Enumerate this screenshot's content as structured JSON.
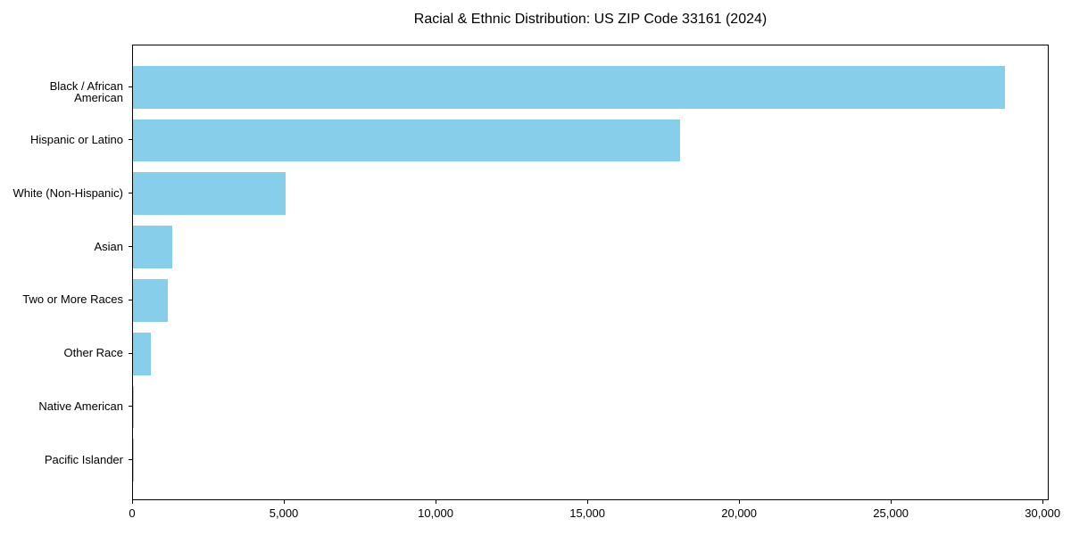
{
  "chart_data": {
    "type": "bar",
    "orientation": "horizontal",
    "title": "Racial & Ethnic Distribution: US ZIP Code 33161 (2024)",
    "categories": [
      "Black / African American",
      "Hispanic or Latino",
      "White (Non-Hispanic)",
      "Asian",
      "Two or More Races",
      "Other Race",
      "Native American",
      "Pacific Islander"
    ],
    "values": [
      28800,
      18050,
      5040,
      1300,
      1150,
      590,
      30,
      10
    ],
    "xlabel": "",
    "ylabel": "",
    "xlim": [
      0,
      30200
    ],
    "x_ticks": [
      0,
      5000,
      10000,
      15000,
      20000,
      25000,
      30000
    ],
    "x_tick_labels": [
      "0",
      "5,000",
      "10,000",
      "15,000",
      "20,000",
      "25,000",
      "30,000"
    ],
    "bar_color": "#87CEEB",
    "grid": false,
    "legend": "none",
    "background_color": "#ffffff"
  }
}
